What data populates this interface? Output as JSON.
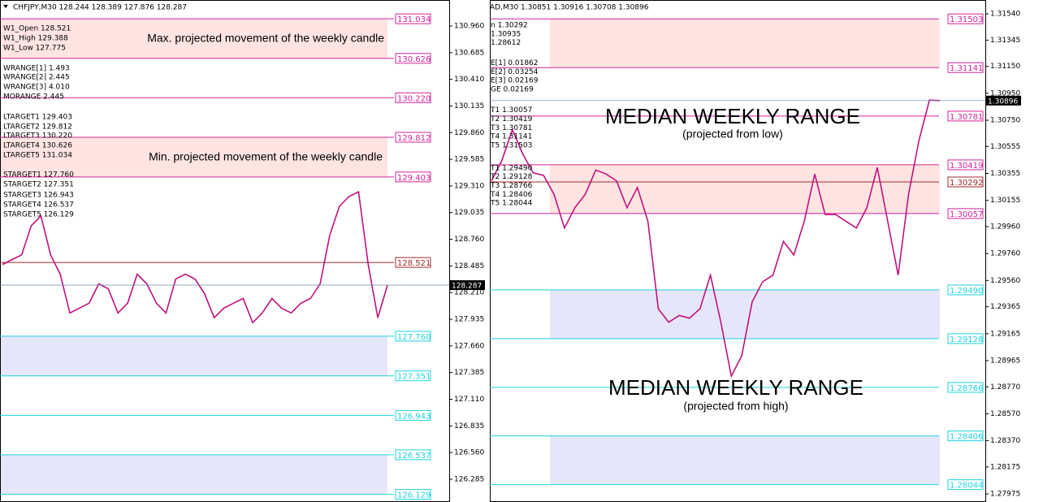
{
  "left": {
    "header": "CHFJPY,M30  128.244 128.389 127.876 128.287",
    "info": [
      "W1_Open 128.521",
      "W1_High 129.388",
      "W1_Low 127.775",
      "WRANGE[1] 1.493",
      "WRANGE[2] 2.445",
      "WRANGE[3] 4.010",
      "MORANGE 2.445",
      "LTARGET1 129.403",
      "LTARGET2 129.812",
      "LTARGET3 130.220",
      "LTARGET4 130.626",
      "LTARGET5 131.034",
      "STARGET1 127.760",
      "STARGET2 127.351",
      "STARGET3 126.943",
      "STARGET4 126.537",
      "STARGET5 126.129"
    ],
    "annotations": [
      "Max. projected movement of the weekly candle",
      "Min. projected movement of the weekly candle"
    ],
    "ylim": [
      126.05,
      131.228
    ],
    "yticks": [
      {
        "value": 130.96,
        "label": "130.960"
      },
      {
        "value": 130.685,
        "label": "130.685"
      },
      {
        "value": 130.41,
        "label": "130.410"
      },
      {
        "value": 130.135,
        "label": "130.135"
      },
      {
        "value": 129.86,
        "label": "129.860"
      },
      {
        "value": 129.585,
        "label": "129.585"
      },
      {
        "value": 129.31,
        "label": "129.310"
      },
      {
        "value": 129.035,
        "label": "129.035"
      },
      {
        "value": 128.76,
        "label": "128.760"
      },
      {
        "value": 128.485,
        "label": "128.485"
      },
      {
        "value": 128.21,
        "label": "128.210"
      },
      {
        "value": 127.935,
        "label": "127.935"
      },
      {
        "value": 127.66,
        "label": "127.660"
      },
      {
        "value": 127.385,
        "label": "127.385"
      },
      {
        "value": 127.11,
        "label": "127.110"
      },
      {
        "value": 126.835,
        "label": "126.835"
      },
      {
        "value": 126.56,
        "label": "126.560"
      },
      {
        "value": 126.285,
        "label": "126.285"
      }
    ],
    "levels": [
      {
        "value": 131.034,
        "label": "131.034",
        "color": "#d4239b"
      },
      {
        "value": 130.626,
        "label": "130.626",
        "color": "#d4239b"
      },
      {
        "value": 130.22,
        "label": "130.220",
        "color": "#d4239b"
      },
      {
        "value": 129.812,
        "label": "129.812",
        "color": "#d4239b"
      },
      {
        "value": 129.403,
        "label": "129.403",
        "color": "#d4239b"
      },
      {
        "value": 128.521,
        "label": "128.521",
        "color": "#a52a2a"
      },
      {
        "value": 127.76,
        "label": "127.760",
        "color": "#1fd3e0"
      },
      {
        "value": 127.351,
        "label": "127.351",
        "color": "#1fd3e0"
      },
      {
        "value": 126.943,
        "label": "126.943",
        "color": "#1fd3e0"
      },
      {
        "value": 126.537,
        "label": "126.537",
        "color": "#1fd3e0"
      },
      {
        "value": 126.129,
        "label": "126.129",
        "color": "#1fd3e0"
      }
    ],
    "current": {
      "value": 128.287,
      "label": "128.287"
    },
    "prices": [
      128.5,
      128.55,
      128.6,
      128.9,
      129.0,
      128.6,
      128.4,
      128.0,
      128.05,
      128.1,
      128.3,
      128.25,
      128.0,
      128.1,
      128.4,
      128.3,
      128.1,
      128.0,
      128.35,
      128.4,
      128.35,
      128.2,
      127.95,
      128.05,
      128.1,
      128.15,
      127.9,
      128.0,
      128.15,
      128.05,
      128.0,
      128.1,
      128.15,
      128.3,
      128.8,
      129.1,
      129.2,
      129.25,
      128.5,
      127.95,
      128.287
    ]
  },
  "right": {
    "header": "AD,M30  1.30851 1.30916 1.30708 1.30896",
    "info": [
      "n 1.30292",
      " 1.30935",
      " 1.28612",
      "",
      "E[1] 0.01862",
      "E[2] 0.03254",
      "E[3] 0.02169",
      "GE 0.02169",
      "",
      "T1 1.30057",
      "T2 1.30419",
      "T3 1.30781",
      "T4 1.31141",
      "T5 1.31503",
      "",
      "T1 1.29490",
      "T2 1.29128",
      "T3 1.28766",
      "T4 1.28406",
      "T5 1.28044"
    ],
    "annotations": [
      "MEDIAN WEEKLY RANGE",
      "(projected from low)",
      "MEDIAN WEEKLY RANGE",
      "(projected from high)"
    ],
    "ylim": [
      1.27915,
      1.31643
    ],
    "yticks": [
      {
        "value": 1.3154,
        "label": "1.31540"
      },
      1.31345,
      {
        "value": 1.3115,
        "label": "1.31150"
      },
      {
        "value": 1.3095,
        "label": "1.30950"
      },
      {
        "value": 1.3075,
        "label": "1.30750"
      },
      1.30555,
      1.30355,
      1.30155,
      {
        "value": 1.2996,
        "label": "1.29960"
      },
      {
        "value": 1.2976,
        "label": "1.29760"
      },
      {
        "value": 1.2956,
        "label": "1.29560"
      },
      1.29365,
      1.29165,
      1.28965,
      {
        "value": 1.2877,
        "label": "1.28770"
      },
      {
        "value": 1.2857,
        "label": "1.28570"
      },
      {
        "value": 1.2837,
        "label": "1.28370"
      },
      1.28175,
      1.27975
    ],
    "levels": [
      {
        "value": 1.31503,
        "label": "1.31503",
        "color": "#d4239b"
      },
      {
        "value": 1.31141,
        "label": "1.31141",
        "color": "#d4239b"
      },
      {
        "value": 1.30781,
        "label": "1.30781",
        "color": "#d4239b"
      },
      {
        "value": 1.30419,
        "label": "1.30419",
        "color": "#d4239b"
      },
      {
        "value": 1.30292,
        "label": "1.30292",
        "color": "#a52a2a"
      },
      {
        "value": 1.30057,
        "label": "1.30057",
        "color": "#d4239b"
      },
      {
        "value": 1.2949,
        "label": "1.29490",
        "color": "#1fd3e0"
      },
      {
        "value": 1.29128,
        "label": "1.29128",
        "color": "#1fd3e0"
      },
      {
        "value": 1.28766,
        "label": "1.28766",
        "color": "#1fd3e0"
      },
      {
        "value": 1.28406,
        "label": "1.28406",
        "color": "#1fd3e0"
      },
      {
        "value": 1.28044,
        "label": "1.28044",
        "color": "#1fd3e0"
      }
    ],
    "current": {
      "value": 1.30896,
      "label": "1.30896"
    },
    "prices": [
      1.303,
      1.3045,
      1.3068,
      1.305,
      1.3036,
      1.3034,
      1.302,
      1.2995,
      1.301,
      1.302,
      1.3038,
      1.3035,
      1.303,
      1.301,
      1.3025,
      1.3,
      1.2935,
      1.2925,
      1.293,
      1.2928,
      1.2935,
      1.296,
      1.2925,
      1.2885,
      1.29,
      1.294,
      1.2955,
      1.296,
      1.2985,
      1.2975,
      1.3,
      1.3035,
      1.3005,
      1.3005,
      1.3,
      1.2995,
      1.301,
      1.304,
      1.3,
      1.296,
      1.302,
      1.306,
      1.309,
      1.30896
    ]
  }
}
